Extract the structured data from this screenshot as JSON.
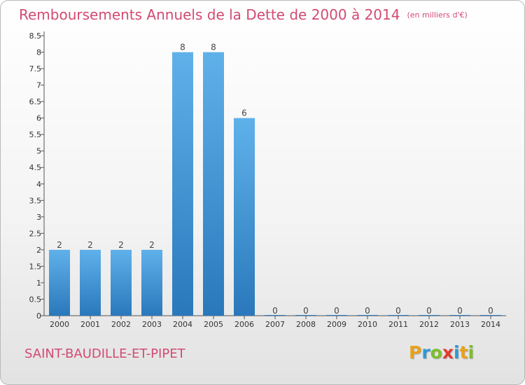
{
  "title": "Remboursements Annuels de la Dette de 2000 à 2014",
  "unit_note": "(en milliers d'€)",
  "town": "SAINT-BAUDILLE-ET-PIPET",
  "logo": {
    "letters": [
      "P",
      "r",
      "o",
      "x",
      "i",
      "t",
      "i"
    ],
    "colors": [
      "#e8a21a",
      "#2a9bd4",
      "#7bbf2a",
      "#e03a2e",
      "#2a9bd4",
      "#e8a21a",
      "#7bbf2a"
    ]
  },
  "colors": {
    "bar_light": "#5fb1ea",
    "bar_dark": "#2a78bb",
    "title": "#d24a72"
  },
  "chart_data": {
    "type": "bar",
    "categories": [
      "2000",
      "2001",
      "2002",
      "2003",
      "2004",
      "2005",
      "2006",
      "2007",
      "2008",
      "2009",
      "2010",
      "2011",
      "2012",
      "2013",
      "2014"
    ],
    "values": [
      2,
      2,
      2,
      2,
      8,
      8,
      6,
      0,
      0,
      0,
      0,
      0,
      0,
      0,
      0
    ],
    "data_labels": [
      "2",
      "2",
      "2",
      "2",
      "8",
      "8",
      "6",
      "0",
      "0",
      "0",
      "0",
      "0",
      "0",
      "0",
      "0"
    ],
    "ylim": [
      0,
      8.5
    ],
    "yticks": [
      0,
      0.5,
      1,
      1.5,
      2,
      2.5,
      3,
      3.5,
      4,
      4.5,
      5,
      5.5,
      6,
      6.5,
      7,
      7.5,
      8,
      8.5
    ],
    "ytick_labels": [
      "0",
      "0.5",
      "1",
      "1.5",
      "2",
      "2.5",
      "3",
      "3.5",
      "4",
      "4.5",
      "5",
      "5.5",
      "6",
      "6.5",
      "7",
      "7.5",
      "8",
      "8.5"
    ],
    "grid": false
  }
}
